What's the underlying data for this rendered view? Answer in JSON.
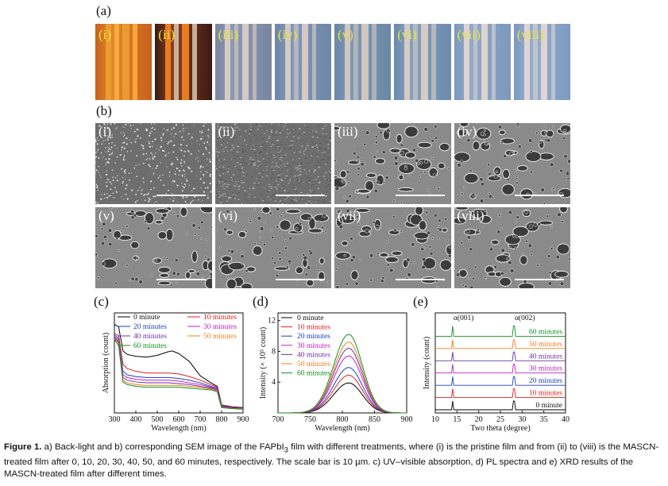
{
  "panel_labels": {
    "a": "(a)",
    "b": "(b)",
    "c": "(c)",
    "d": "(d)",
    "e": "(e)"
  },
  "photos": [
    {
      "label": "(i)",
      "colors": [
        "#c8601e",
        "#f0a030",
        "#ffb040",
        "#e08a2a"
      ]
    },
    {
      "label": "(ii)",
      "colors": [
        "#3a1a14",
        "#ff8a20",
        "#d8c6b0",
        "#8a4020"
      ]
    },
    {
      "label": "(iii)",
      "colors": [
        "#7a86a0",
        "#e4d2c8",
        "#c8bcb8",
        "#8a98b8"
      ]
    },
    {
      "label": "(iv)",
      "colors": [
        "#6e86a8",
        "#e6d2c6",
        "#c0bcc0",
        "#7e98bc"
      ]
    },
    {
      "label": "(v)",
      "colors": [
        "#6a88a6",
        "#e2d0c2",
        "#bcb8b8",
        "#7e98b6"
      ]
    },
    {
      "label": "(vi)",
      "colors": [
        "#6c8aac",
        "#e4d4c6",
        "#c0bec2",
        "#86a0c0"
      ]
    },
    {
      "label": "(vii)",
      "colors": [
        "#7c98bc",
        "#ecdcd0",
        "#c6c6cc",
        "#90aacc"
      ]
    },
    {
      "label": "(viii)",
      "colors": [
        "#7e9ac0",
        "#eedcd2",
        "#c8c8ce",
        "#94aed0"
      ]
    }
  ],
  "sem": [
    {
      "label": "(i)"
    },
    {
      "label": "(ii)"
    },
    {
      "label": "(iii)"
    },
    {
      "label": "(iv)"
    },
    {
      "label": "(v)"
    },
    {
      "label": "(vi)"
    },
    {
      "label": "(vii)"
    },
    {
      "label": "(viii)"
    }
  ],
  "chart_data": [
    {
      "type": "line",
      "panel": "c",
      "xlabel": "Wavelength (nm)",
      "ylabel": "Absorption (count)",
      "xlim": [
        300,
        900
      ],
      "xticks": [
        300,
        400,
        500,
        600,
        700,
        800,
        900
      ],
      "legend_placement": "top",
      "series": [
        {
          "name": "0 minute",
          "color": "#000000",
          "x": [
            300,
            320,
            340,
            360,
            400,
            450,
            500,
            550,
            570,
            600,
            650,
            700,
            750,
            780,
            790,
            800,
            850,
            900
          ],
          "y": [
            1.0,
            0.97,
            0.7,
            0.66,
            0.64,
            0.63,
            0.65,
            0.69,
            0.7,
            0.67,
            0.58,
            0.42,
            0.34,
            0.3,
            0.2,
            0.09,
            0.07,
            0.06
          ]
        },
        {
          "name": "10 minutes",
          "color": "#e02020",
          "x": [
            300,
            320,
            340,
            360,
            400,
            450,
            500,
            550,
            600,
            650,
            700,
            750,
            780,
            790,
            800,
            850,
            900
          ],
          "y": [
            0.9,
            0.87,
            0.55,
            0.5,
            0.47,
            0.45,
            0.45,
            0.45,
            0.44,
            0.41,
            0.37,
            0.32,
            0.29,
            0.19,
            0.085,
            0.065,
            0.055
          ]
        },
        {
          "name": "20 minutes",
          "color": "#2040c0",
          "x": [
            300,
            320,
            340,
            360,
            400,
            450,
            500,
            550,
            600,
            650,
            700,
            750,
            780,
            790,
            800,
            850,
            900
          ],
          "y": [
            0.88,
            0.84,
            0.47,
            0.43,
            0.41,
            0.4,
            0.4,
            0.4,
            0.39,
            0.37,
            0.34,
            0.3,
            0.28,
            0.18,
            0.08,
            0.06,
            0.05
          ]
        },
        {
          "name": "30 minutes",
          "color": "#c020c0",
          "x": [
            300,
            320,
            340,
            360,
            400,
            450,
            500,
            550,
            600,
            650,
            700,
            750,
            780,
            790,
            800,
            850,
            900
          ],
          "y": [
            0.86,
            0.82,
            0.43,
            0.4,
            0.38,
            0.37,
            0.37,
            0.37,
            0.36,
            0.34,
            0.32,
            0.29,
            0.27,
            0.17,
            0.075,
            0.058,
            0.05
          ]
        },
        {
          "name": "40 minutes",
          "color": "#7030a0",
          "x": [
            300,
            320,
            340,
            360,
            400,
            450,
            500,
            550,
            600,
            650,
            700,
            750,
            780,
            790,
            800,
            850,
            900
          ],
          "y": [
            0.85,
            0.8,
            0.4,
            0.37,
            0.35,
            0.34,
            0.34,
            0.34,
            0.33,
            0.32,
            0.3,
            0.28,
            0.26,
            0.16,
            0.07,
            0.055,
            0.048
          ]
        },
        {
          "name": "50 minutes",
          "color": "#f08020",
          "x": [
            300,
            320,
            340,
            360,
            400,
            450,
            500,
            550,
            600,
            650,
            700,
            750,
            780,
            790,
            800,
            850,
            900
          ],
          "y": [
            0.84,
            0.78,
            0.37,
            0.34,
            0.32,
            0.31,
            0.31,
            0.31,
            0.31,
            0.3,
            0.29,
            0.27,
            0.25,
            0.15,
            0.065,
            0.05,
            0.045
          ]
        },
        {
          "name": "60 minutes",
          "color": "#109020",
          "x": [
            300,
            320,
            340,
            360,
            400,
            450,
            500,
            550,
            600,
            650,
            700,
            750,
            780,
            790,
            800,
            850,
            900
          ],
          "y": [
            0.83,
            0.76,
            0.35,
            0.32,
            0.3,
            0.29,
            0.29,
            0.29,
            0.29,
            0.28,
            0.27,
            0.26,
            0.24,
            0.14,
            0.06,
            0.048,
            0.042
          ]
        }
      ]
    },
    {
      "type": "line",
      "panel": "d",
      "xlabel": "Wavelength (nm)",
      "ylabel": "Intensity (× 10⁵ count)",
      "xlim": [
        700,
        900
      ],
      "ylim": [
        0,
        13
      ],
      "xticks": [
        700,
        750,
        800,
        850,
        900
      ],
      "yticks": [
        4,
        8,
        12
      ],
      "legend_placement": "top-left",
      "series": [
        {
          "name": "0 minute",
          "color": "#000000",
          "peak": 3.9
        },
        {
          "name": "10 minutes",
          "color": "#e02020",
          "peak": 4.9
        },
        {
          "name": "20 minutes",
          "color": "#2040c0",
          "peak": 5.9
        },
        {
          "name": "30 minutes",
          "color": "#c020c0",
          "peak": 7.4
        },
        {
          "name": "40 minutes",
          "color": "#7030a0",
          "peak": 8.4
        },
        {
          "name": "50 minutes",
          "color": "#f08020",
          "peak": 9.2
        },
        {
          "name": "60 minutes",
          "color": "#109020",
          "peak": 10.2
        }
      ],
      "peak_wavelength": 810
    },
    {
      "type": "line",
      "panel": "e",
      "xlabel": "Two theta (degree)",
      "ylabel": "Intensity (count)",
      "xlim": [
        10,
        40
      ],
      "xticks": [
        10,
        15,
        20,
        25,
        30,
        35,
        40
      ],
      "legend_placement": "right",
      "annotations": [
        {
          "text": "α(001)",
          "x": 14
        },
        {
          "text": "α(002)",
          "x": 28.1
        }
      ],
      "peaks_2theta": [
        14,
        28.1
      ],
      "series": [
        {
          "name": "0 minute",
          "color": "#000000"
        },
        {
          "name": "10 minutes",
          "color": "#e02020"
        },
        {
          "name": "20 minutes",
          "color": "#2040c0"
        },
        {
          "name": "30 minutes",
          "color": "#c020c0"
        },
        {
          "name": "40 minutes",
          "color": "#7030a0"
        },
        {
          "name": "50 minutes",
          "color": "#f08020"
        },
        {
          "name": "60 minutes",
          "color": "#109020"
        }
      ]
    }
  ],
  "caption": {
    "fig": "Figure 1.",
    "part1": " a) Back-light and b) corresponding SEM image of the FAPbI",
    "sub": "3",
    "part2": " film with different treatments, where (i) is the pristine film and from (ii) to (viii) is the MASCN-treated film after 0, 10, 20, 30, 40, 50, and 60 minutes, respectively. The scale bar is 10 µm. c) UV–visible absorption, d) PL spectra and e) XRD results of the MASCN-treated film after different times."
  }
}
